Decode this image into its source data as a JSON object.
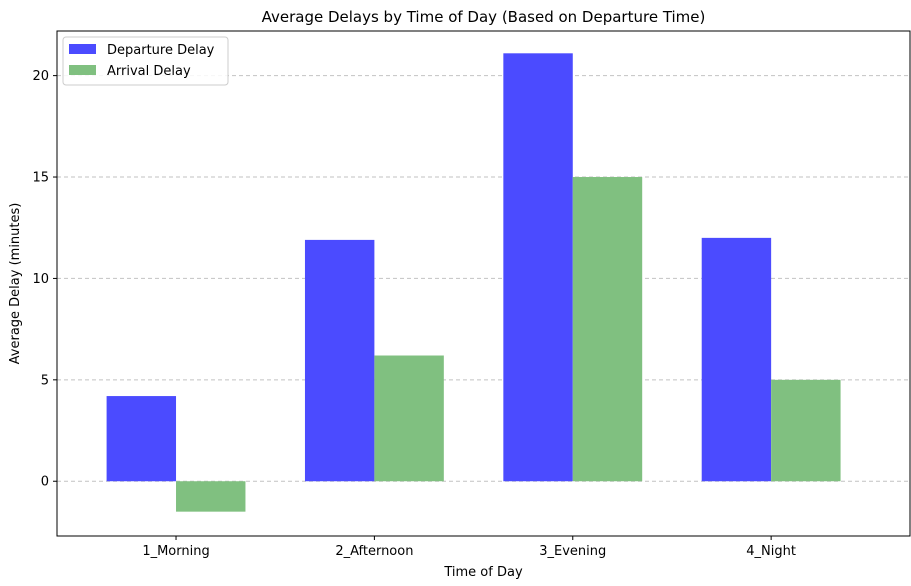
{
  "chart_data": {
    "type": "bar",
    "title": "Average Delays by Time of Day (Based on Departure Time)",
    "xlabel": "Time of Day",
    "ylabel": "Average Delay (minutes)",
    "categories": [
      "1_Morning",
      "2_Afternoon",
      "3_Evening",
      "4_Night"
    ],
    "series": [
      {
        "name": "Departure Delay",
        "values": [
          4.2,
          11.9,
          21.1,
          12.0
        ],
        "color": "#4b4bff"
      },
      {
        "name": "Arrival Delay",
        "values": [
          -1.5,
          6.2,
          15.0,
          5.0
        ],
        "color": "#80c080"
      }
    ],
    "ylim": [
      -2.7,
      22.2
    ],
    "yticks": [
      "0",
      "5",
      "10",
      "15",
      "20"
    ],
    "grid": "y-dashed",
    "legend_position": "top-left"
  }
}
